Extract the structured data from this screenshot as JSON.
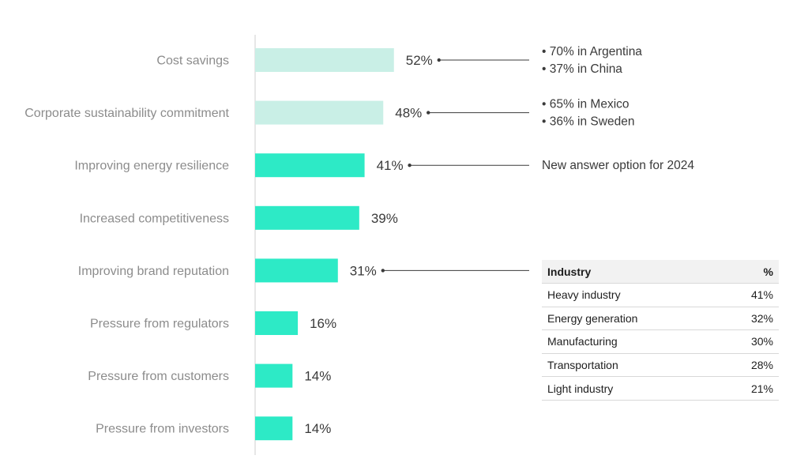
{
  "chart_data": {
    "type": "bar",
    "orientation": "horizontal",
    "categories": [
      "Cost savings",
      "Corporate sustainability commitment",
      "Improving energy resilience",
      "Increased competitiveness",
      "Improving brand reputation",
      "Pressure from regulators",
      "Pressure from customers",
      "Pressure from investors"
    ],
    "values": [
      52,
      48,
      41,
      39,
      31,
      16,
      14,
      14
    ],
    "value_labels": [
      "52%",
      "48%",
      "41%",
      "39%",
      "31%",
      "16%",
      "14%",
      "14%"
    ],
    "colors": [
      "#c9efe6",
      "#c9efe6",
      "#2deac6",
      "#2deac6",
      "#2deac6",
      "#2deac6",
      "#2deac6",
      "#2deac6"
    ],
    "annotations": [
      {
        "category_index": 0,
        "lines": [
          "• 70% in Argentina",
          "• 37% in China"
        ]
      },
      {
        "category_index": 1,
        "lines": [
          "• 65% in Mexico",
          "• 36% in Sweden"
        ]
      },
      {
        "category_index": 2,
        "lines": [
          "New answer option for 2024"
        ]
      },
      {
        "category_index": 4,
        "lines": []
      }
    ],
    "title": "",
    "xlabel": "",
    "ylabel": ""
  },
  "industry_table": {
    "headers": [
      "Industry",
      "%"
    ],
    "rows": [
      [
        "Heavy industry",
        "41%"
      ],
      [
        "Energy generation",
        "32%"
      ],
      [
        "Manufacturing",
        "30%"
      ],
      [
        "Transportation",
        "28%"
      ],
      [
        "Light industry",
        "21%"
      ]
    ]
  }
}
